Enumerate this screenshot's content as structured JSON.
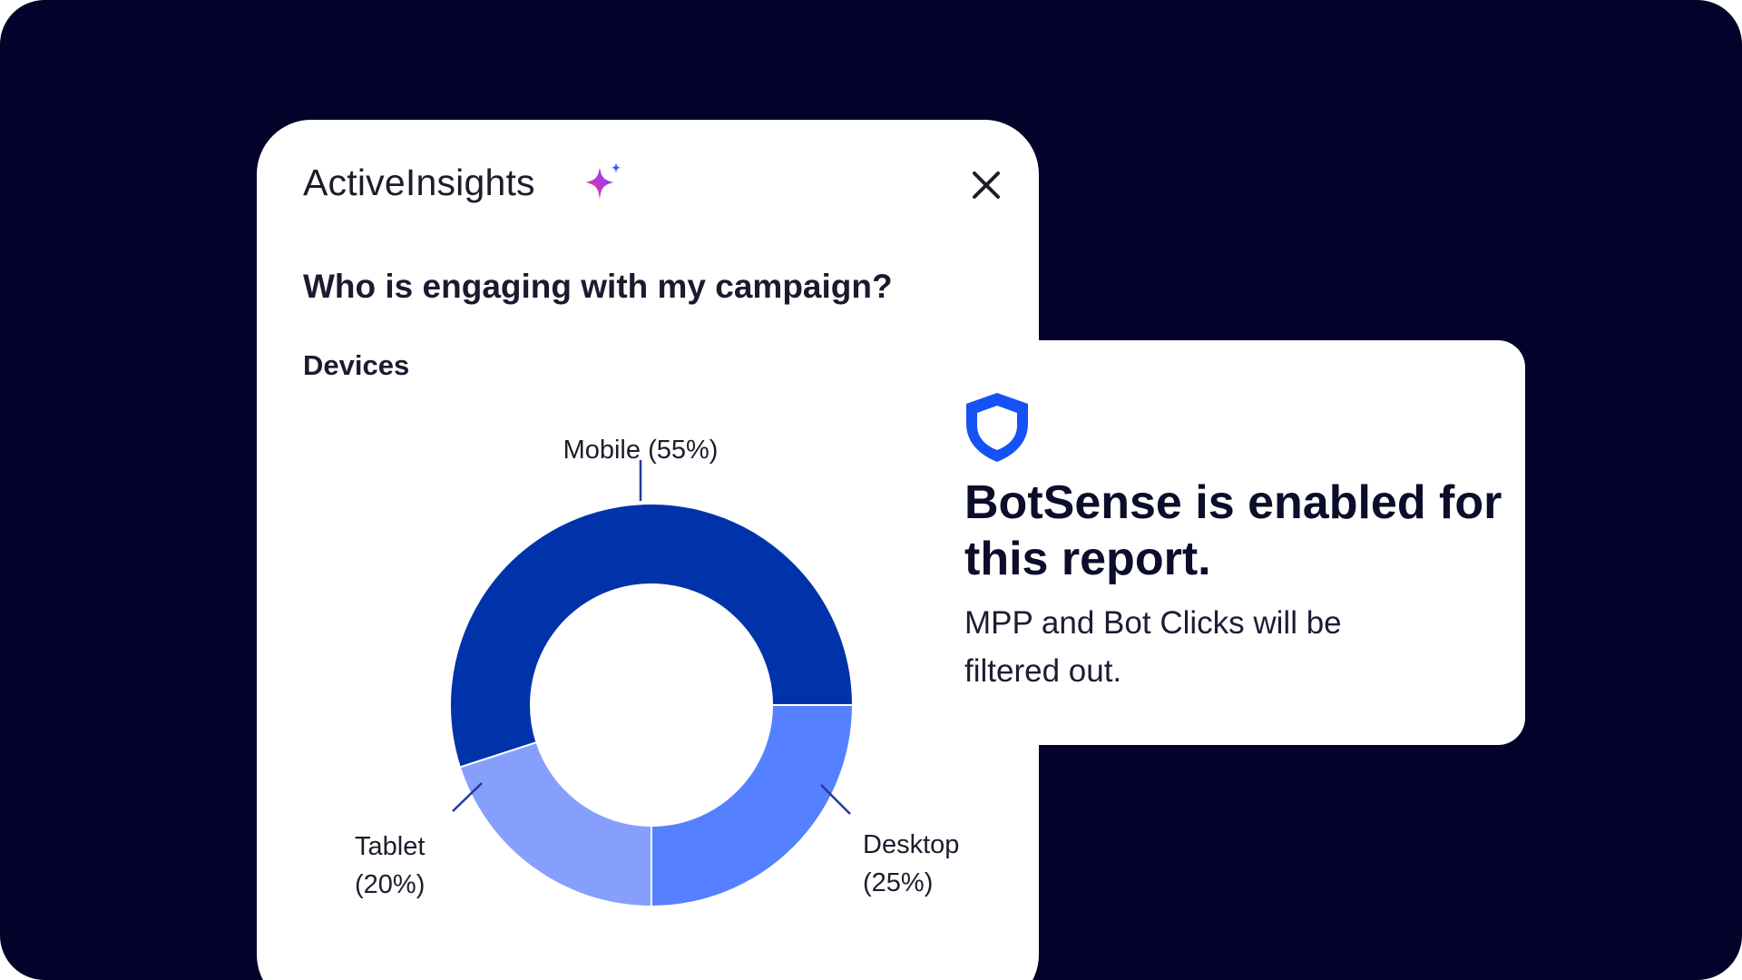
{
  "insights_panel": {
    "title": "ActiveInsights",
    "sparkle_icon": "sparkle-icon",
    "close_icon": "close-icon",
    "question": "Who is engaging with my campaign?",
    "section_label": "Devices"
  },
  "chart_data": {
    "type": "pie",
    "variant": "donut",
    "title": "Devices",
    "slices": [
      {
        "name": "Mobile",
        "value": 55,
        "label_line1": "Mobile (55%)",
        "label_line2": "",
        "color": "#0033aa"
      },
      {
        "name": "Desktop",
        "value": 25,
        "label_line1": "Desktop",
        "label_line2": "(25%)",
        "color": "#5580ff"
      },
      {
        "name": "Tablet",
        "value": 20,
        "label_line1": "Tablet",
        "label_line2": "(20%)",
        "color": "#869ffd"
      }
    ]
  },
  "botsense_card": {
    "shield_icon": "shield-icon",
    "headline": "BotSense is enabled for this report.",
    "body": "MPP and Bot Clicks will be filtered out."
  },
  "colors": {
    "page_background": "#02022a",
    "card_background": "#ffffff",
    "accent_blue": "#1552f5",
    "text_dark": "#1a1b2e"
  }
}
